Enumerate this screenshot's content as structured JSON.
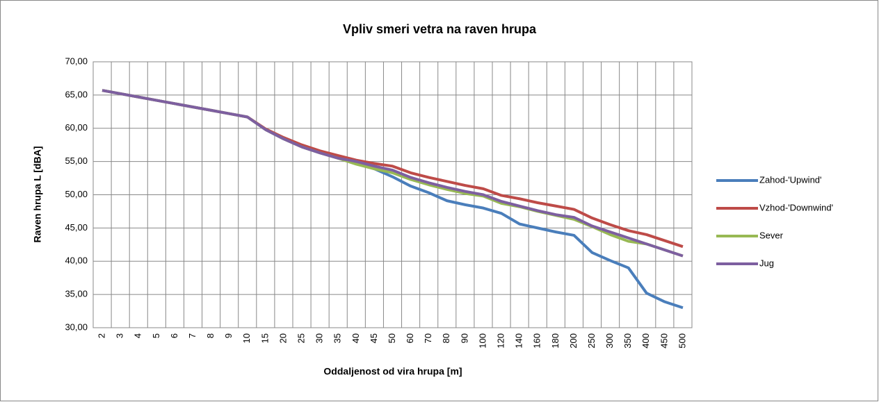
{
  "chart_data": {
    "type": "line",
    "title": "Vpliv smeri vetra na raven hrupa",
    "x_label": "Oddaljenost od vira hrupa      [m]",
    "y_label": "Raven hrupa    L    [dBA]",
    "categories": [
      "2",
      "3",
      "4",
      "5",
      "6",
      "7",
      "8",
      "9",
      "10",
      "15",
      "20",
      "25",
      "30",
      "35",
      "40",
      "45",
      "50",
      "60",
      "70",
      "80",
      "90",
      "100",
      "120",
      "140",
      "160",
      "180",
      "200",
      "250",
      "300",
      "350",
      "400",
      "450",
      "500"
    ],
    "series": [
      {
        "name": "Zahod-'Upwind'",
        "color": "#4a7ebb",
        "values": [
          65.7,
          65.2,
          64.7,
          64.2,
          63.7,
          63.2,
          62.7,
          62.2,
          61.7,
          59.8,
          58.4,
          57.2,
          56.3,
          55.5,
          54.7,
          53.9,
          52.7,
          51.3,
          50.3,
          49.1,
          48.5,
          48.0,
          47.2,
          45.6,
          45.0,
          44.4,
          43.9,
          41.3,
          40.1,
          39.0,
          35.2,
          33.9,
          33.0
        ]
      },
      {
        "name": "Vzhod-'Downwind'",
        "color": "#be4b48",
        "values": [
          65.7,
          65.2,
          64.7,
          64.2,
          63.7,
          63.2,
          62.7,
          62.2,
          61.7,
          59.9,
          58.6,
          57.5,
          56.6,
          55.9,
          55.2,
          54.7,
          54.3,
          53.3,
          52.6,
          52.0,
          51.4,
          50.9,
          49.9,
          49.4,
          48.8,
          48.3,
          47.8,
          46.5,
          45.5,
          44.6,
          44.0,
          43.1,
          42.2
        ]
      },
      {
        "name": "Sever",
        "color": "#98b954",
        "values": [
          65.7,
          65.2,
          64.7,
          64.2,
          63.7,
          63.2,
          62.7,
          62.2,
          61.7,
          59.8,
          58.4,
          57.2,
          56.3,
          55.5,
          54.6,
          53.9,
          53.3,
          52.3,
          51.5,
          50.8,
          50.2,
          49.8,
          48.7,
          48.2,
          47.5,
          46.9,
          46.3,
          45.2,
          44.0,
          43.0,
          42.6,
          41.7,
          40.8
        ]
      },
      {
        "name": "Jug",
        "color": "#7d5fa0",
        "values": [
          65.7,
          65.2,
          64.7,
          64.2,
          63.7,
          63.2,
          62.7,
          62.2,
          61.7,
          59.8,
          58.4,
          57.2,
          56.3,
          55.5,
          55.0,
          54.3,
          53.7,
          52.6,
          51.8,
          51.1,
          50.5,
          50.0,
          49.0,
          48.3,
          47.6,
          47.0,
          46.6,
          45.3,
          44.4,
          43.5,
          42.6,
          41.7,
          40.8
        ]
      }
    ],
    "ylim": [
      30,
      70
    ],
    "yticks": [
      {
        "value": 30,
        "label": "30,00"
      },
      {
        "value": 35,
        "label": "35,00"
      },
      {
        "value": 40,
        "label": "40,00"
      },
      {
        "value": 45,
        "label": "45,00"
      },
      {
        "value": 50,
        "label": "50,00"
      },
      {
        "value": 55,
        "label": "55,00"
      },
      {
        "value": 60,
        "label": "60,00"
      },
      {
        "value": 65,
        "label": "65,00"
      },
      {
        "value": 70,
        "label": "70,00"
      }
    ],
    "grid": true,
    "legend": "right"
  }
}
